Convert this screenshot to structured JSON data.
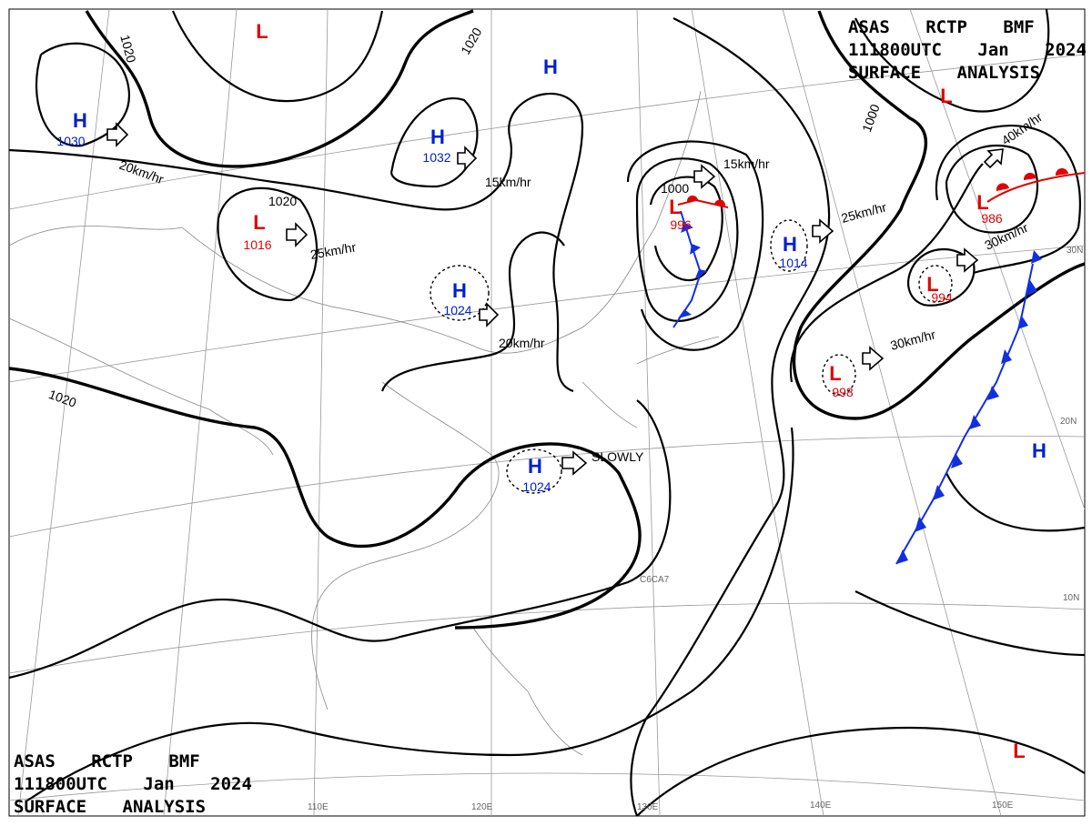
{
  "header": {
    "lines": [
      "ASAS RCTP BMF",
      "111800UTC Jan 2024",
      "SURFACE ANALYSIS"
    ]
  },
  "centers": [
    {
      "symbol": "H",
      "value": "1030"
    },
    {
      "symbol": "L",
      "value": "1016"
    },
    {
      "symbol": "H",
      "value": "1032"
    },
    {
      "symbol": "H",
      "value": "1024"
    },
    {
      "symbol": "H",
      "value": "1024"
    },
    {
      "symbol": "L",
      "value": "996"
    },
    {
      "symbol": "H",
      "value": "1014"
    },
    {
      "symbol": "L",
      "value": "998"
    },
    {
      "symbol": "L",
      "value": "994"
    },
    {
      "symbol": "L",
      "value": "986"
    },
    {
      "symbol": "L"
    },
    {
      "symbol": "L"
    },
    {
      "symbol": "L"
    },
    {
      "symbol": "H"
    },
    {
      "symbol": "H"
    }
  ],
  "isobar_labels": [
    "1020",
    "1020",
    "1020",
    "1020",
    "1000",
    "1000"
  ],
  "motion_labels": [
    "20km/hr",
    "25km/hr",
    "15km/hr",
    "20km/hr",
    "SLOWLY",
    "15km/hr",
    "25km/hr",
    "30km/hr",
    "40km/hr",
    "30km/hr"
  ],
  "latitude_labels": [
    "30N",
    "20N",
    "10N"
  ],
  "longitude_labels": [
    "110E",
    "120E",
    "130E",
    "140E",
    "150E"
  ],
  "ship_label": "C6CA7"
}
